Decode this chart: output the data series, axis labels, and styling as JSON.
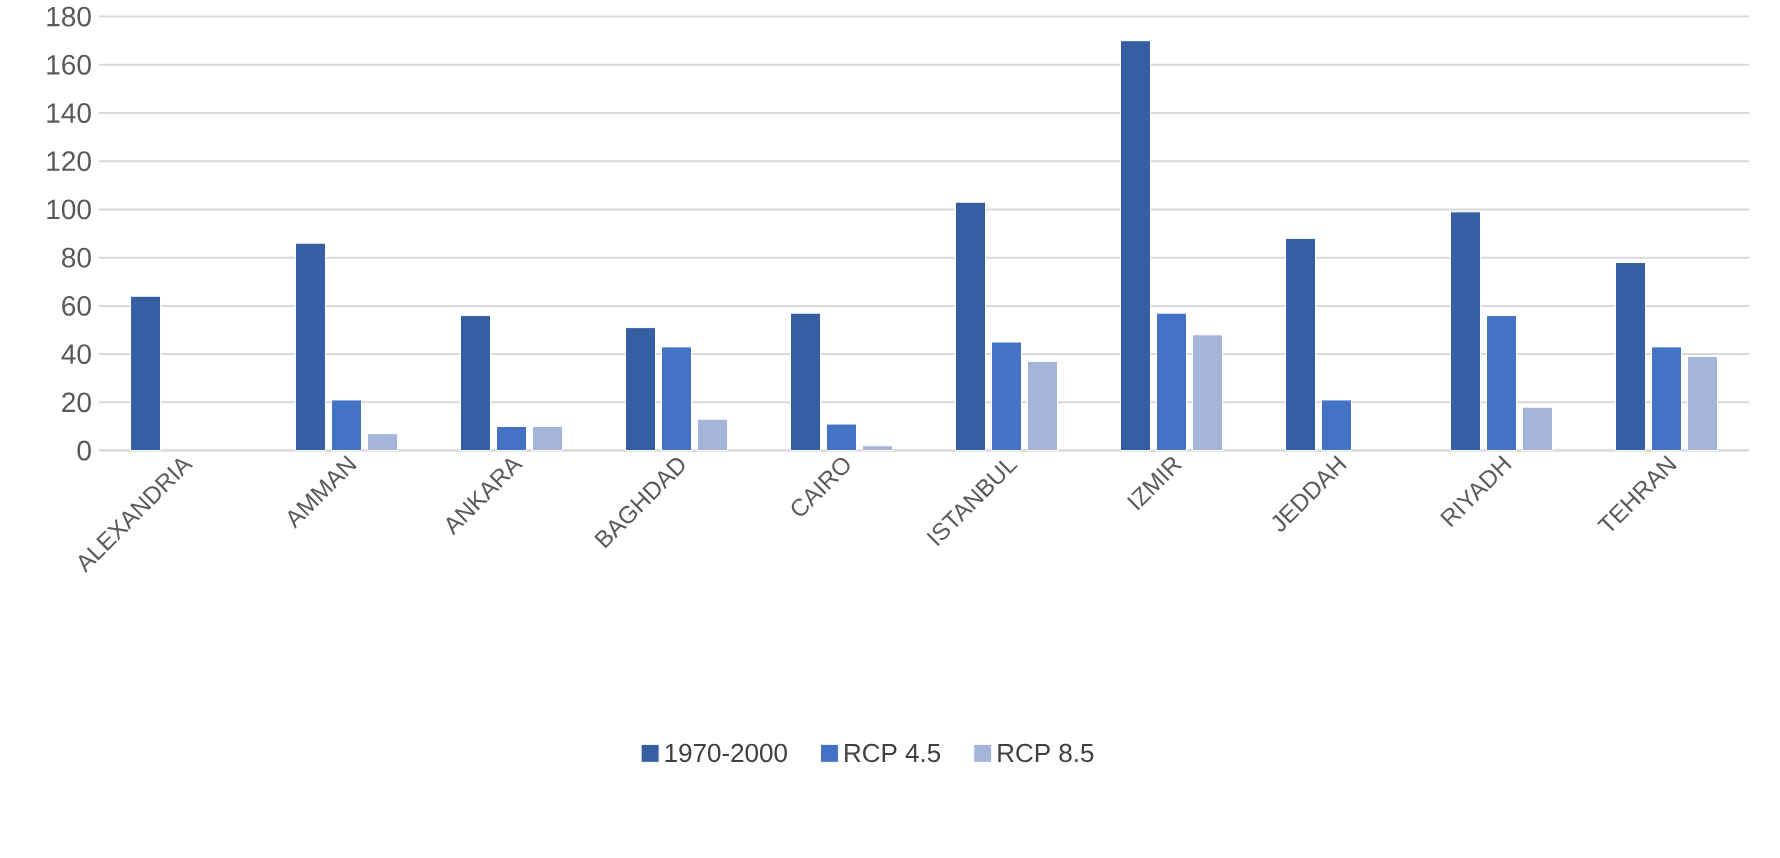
{
  "chart_data": {
    "type": "bar",
    "categories": [
      "ALEXANDRIA",
      "AMMAN",
      "ANKARA",
      "BAGHDAD",
      "CAIRO",
      "ISTANBUL",
      "IZMIR",
      "JEDDAH",
      "RIYADH",
      "TEHRAN"
    ],
    "series": [
      {
        "name": "1970-2000",
        "color": "#365fa3",
        "values": [
          64,
          86,
          56,
          51,
          57,
          103,
          170,
          88,
          99,
          78
        ]
      },
      {
        "name": "RCP 4.5",
        "color": "#4472c4",
        "values": [
          null,
          21,
          10,
          43,
          11,
          45,
          57,
          21,
          56,
          43
        ]
      },
      {
        "name": "RCP 8.5",
        "color": "#a5b4db",
        "values": [
          null,
          7,
          10,
          13,
          2,
          37,
          48,
          null,
          18,
          39
        ]
      }
    ],
    "ylim": [
      0,
      180
    ],
    "yticks": [
      0,
      20,
      40,
      60,
      80,
      100,
      120,
      140,
      160,
      180
    ],
    "grid": "y",
    "legend": "bottom"
  }
}
